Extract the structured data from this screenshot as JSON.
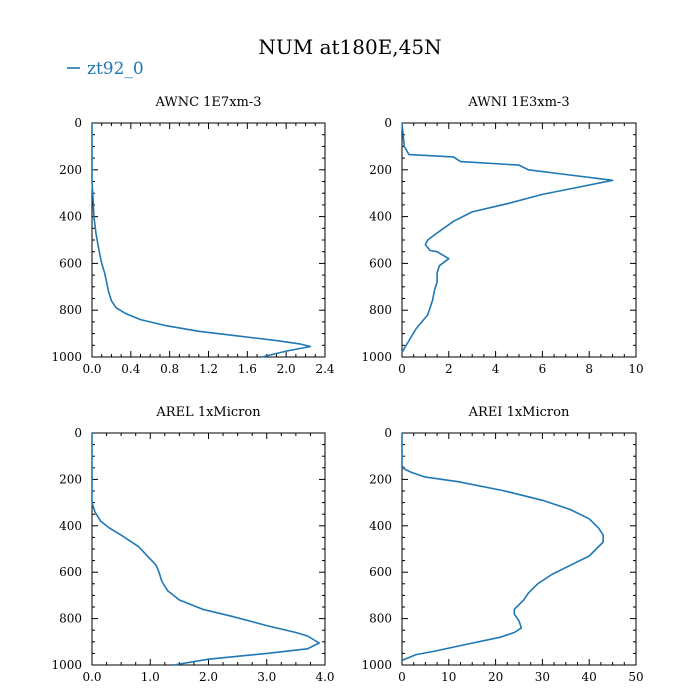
{
  "figure": {
    "title": "NUM at180E,45N",
    "legend_label": "zt92_0",
    "legend_color": "#1f77b4"
  },
  "chart_data": [
    {
      "type": "line",
      "title": "AWNC  1E7xm-3",
      "series": [
        {
          "name": "zt92_0",
          "color": "#1f77b4"
        }
      ],
      "xlim": [
        0,
        2.4
      ],
      "ylim": [
        1000,
        0
      ],
      "xticks": [
        0.0,
        0.4,
        0.8,
        1.2,
        1.6,
        2.0,
        2.4
      ],
      "xtick_labels": [
        "0.0",
        "0.4",
        "0.8",
        "1.2",
        "1.6",
        "2.0",
        "2.4"
      ],
      "yticks": [
        0,
        200,
        400,
        600,
        800,
        1000
      ],
      "ytick_labels": [
        "0",
        "200",
        "400",
        "600",
        "800",
        "1000"
      ],
      "x": [
        0,
        0,
        0.01,
        0.02,
        0.04,
        0.07,
        0.1,
        0.13,
        0.15,
        0.17,
        0.2,
        0.25,
        0.35,
        0.5,
        0.75,
        1.1,
        1.5,
        1.9,
        2.15,
        2.25,
        2.0,
        1.75
      ],
      "y": [
        0,
        250,
        320,
        400,
        470,
        540,
        600,
        640,
        680,
        720,
        760,
        790,
        815,
        840,
        865,
        890,
        910,
        930,
        945,
        955,
        975,
        1000
      ]
    },
    {
      "type": "line",
      "title": "AWNI  1E3xm-3",
      "series": [
        {
          "name": "zt92_0",
          "color": "#1f77b4"
        }
      ],
      "xlim": [
        0,
        10
      ],
      "ylim": [
        1000,
        0
      ],
      "xticks": [
        0,
        2,
        4,
        6,
        8,
        10
      ],
      "xtick_labels": [
        "0",
        "2",
        "4",
        "6",
        "8",
        "10"
      ],
      "yticks": [
        0,
        200,
        400,
        600,
        800,
        1000
      ],
      "ytick_labels": [
        "0",
        "200",
        "400",
        "600",
        "800",
        "1000"
      ],
      "x": [
        0,
        0.1,
        0.3,
        2.2,
        2.5,
        5,
        5.4,
        7,
        9.0,
        7.5,
        6.0,
        4.5,
        3.0,
        2.2,
        1.5,
        1.1,
        1.0,
        1.2,
        1.5,
        2.0,
        1.6,
        1.5,
        1.5,
        1.4,
        1.3,
        1.1,
        0.6,
        0.3,
        0
      ],
      "y": [
        0,
        100,
        135,
        145,
        165,
        180,
        200,
        220,
        245,
        275,
        305,
        345,
        380,
        420,
        470,
        500,
        520,
        545,
        550,
        580,
        610,
        640,
        680,
        710,
        760,
        820,
        880,
        930,
        980
      ]
    },
    {
      "type": "line",
      "title": "AREL  1xMicron",
      "series": [
        {
          "name": "zt92_0",
          "color": "#1f77b4"
        }
      ],
      "xlim": [
        0,
        4.0
      ],
      "ylim": [
        1000,
        0
      ],
      "xticks": [
        0.0,
        1.0,
        2.0,
        3.0,
        4.0
      ],
      "xtick_labels": [
        "0.0",
        "1.0",
        "2.0",
        "3.0",
        "4.0"
      ],
      "yticks": [
        0,
        200,
        400,
        600,
        800,
        1000
      ],
      "ytick_labels": [
        "0",
        "200",
        "400",
        "600",
        "800",
        "1000"
      ],
      "x": [
        0,
        0,
        0.05,
        0.15,
        0.3,
        0.5,
        0.8,
        1.1,
        1.15,
        1.2,
        1.3,
        1.5,
        1.9,
        2.4,
        3.0,
        3.5,
        3.7,
        3.9,
        3.7,
        3.0,
        2.0,
        1.4
      ],
      "y": [
        0,
        300,
        340,
        380,
        410,
        440,
        490,
        570,
        600,
        640,
        680,
        720,
        760,
        790,
        830,
        860,
        875,
        905,
        930,
        950,
        975,
        1000
      ]
    },
    {
      "type": "line",
      "title": "AREI  1xMicron",
      "series": [
        {
          "name": "zt92_0",
          "color": "#1f77b4"
        }
      ],
      "xlim": [
        0,
        50
      ],
      "ylim": [
        1000,
        0
      ],
      "xticks": [
        0,
        10,
        20,
        30,
        40,
        50
      ],
      "xtick_labels": [
        "0",
        "10",
        "20",
        "30",
        "40",
        "50"
      ],
      "yticks": [
        0,
        200,
        400,
        600,
        800,
        1000
      ],
      "ytick_labels": [
        "0",
        "200",
        "400",
        "600",
        "800",
        "1000"
      ],
      "x": [
        0,
        0,
        0.5,
        2,
        5,
        12,
        22,
        30,
        36,
        40,
        42,
        43,
        43,
        40,
        36,
        32,
        29,
        27,
        26,
        25,
        24,
        24,
        25,
        25.5,
        24,
        21,
        14,
        7,
        3,
        0
      ],
      "y": [
        0,
        140,
        155,
        170,
        190,
        210,
        250,
        290,
        330,
        370,
        410,
        440,
        470,
        530,
        570,
        610,
        650,
        690,
        720,
        740,
        760,
        780,
        810,
        840,
        860,
        880,
        910,
        940,
        955,
        980
      ]
    }
  ]
}
